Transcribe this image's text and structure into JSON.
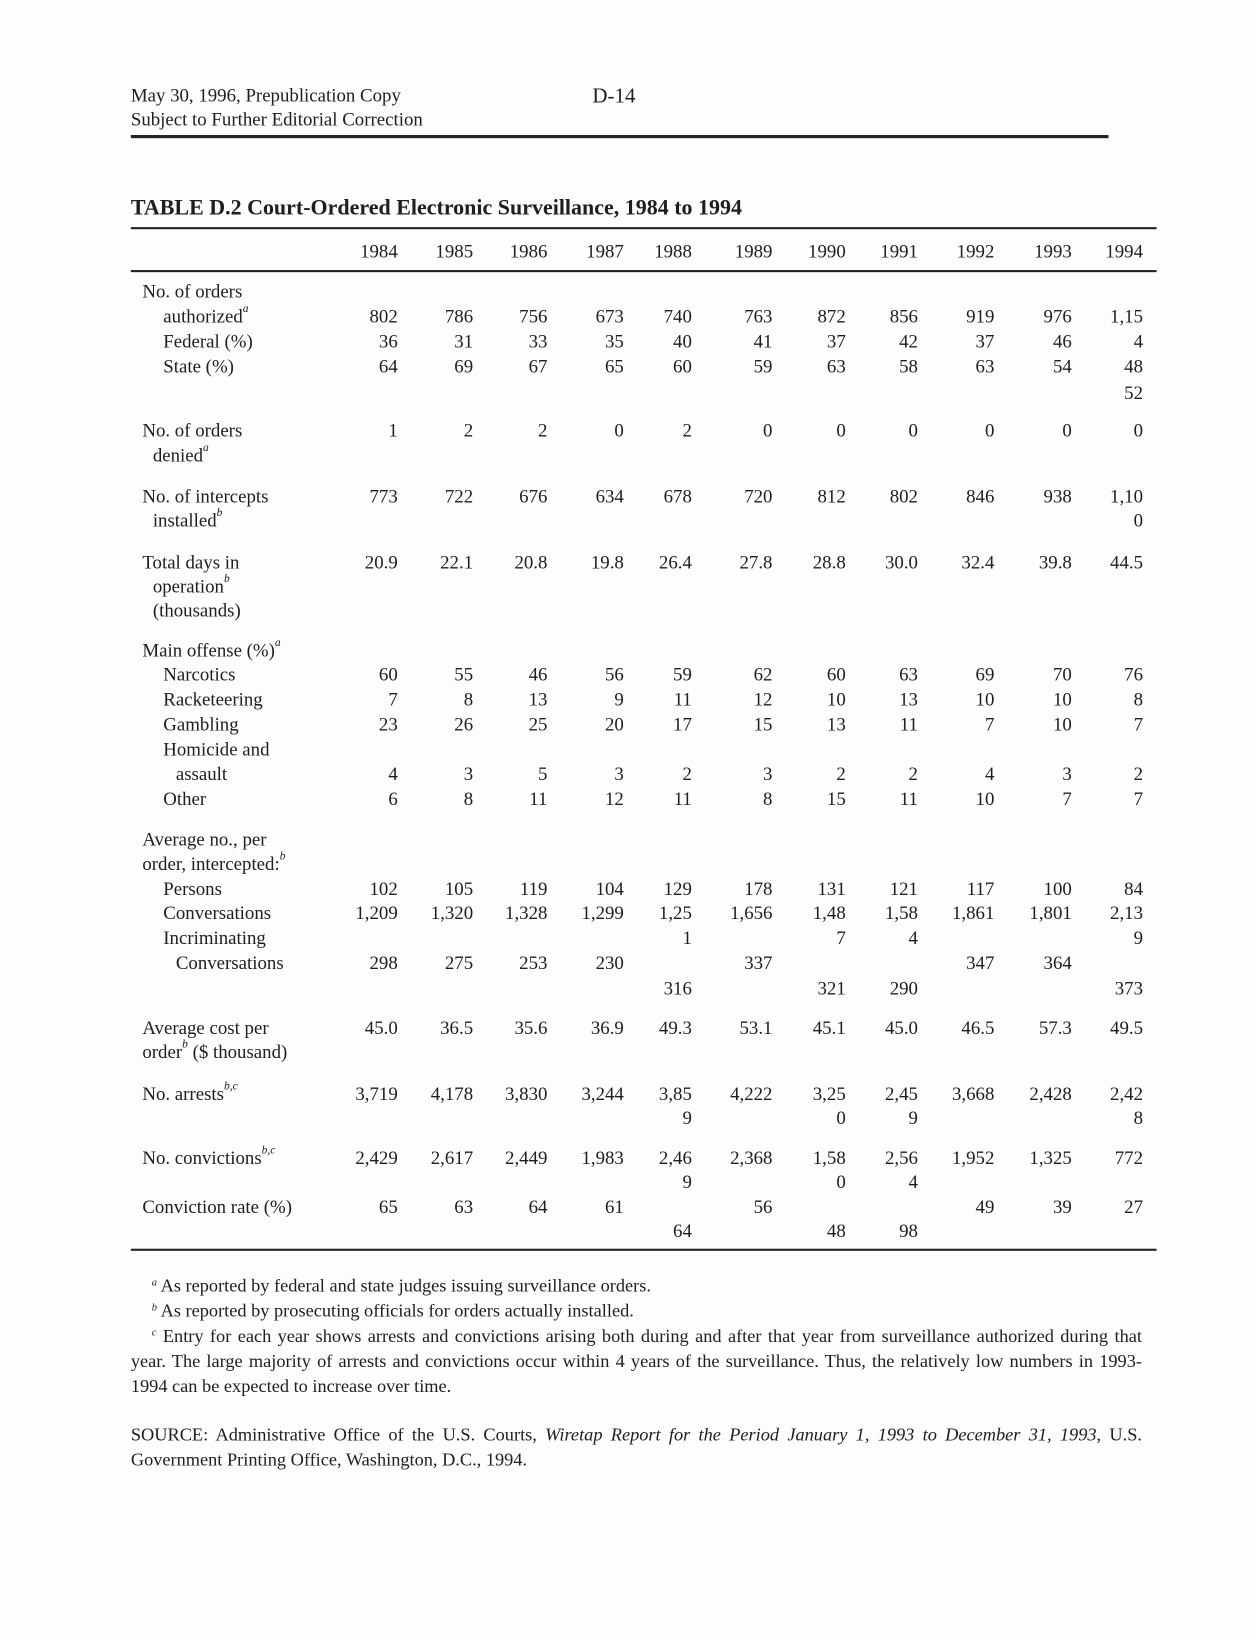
{
  "header": {
    "line1": "May 30, 1996, Prepublication Copy",
    "line2": "Subject to Further Editorial Correction",
    "page_number": "D-14"
  },
  "table": {
    "title": "TABLE D.2  Court-Ordered Electronic Surveillance, 1984 to 1994",
    "years": [
      "1984",
      "1985",
      "1986",
      "1987",
      "1988",
      "1989",
      "1990",
      "1991",
      "1992",
      "1993",
      "1994"
    ],
    "lines": [
      {
        "label": "No. of orders",
        "indent": 0,
        "sup": "",
        "cells": [
          "",
          "",
          "",
          "",
          "",
          "",
          "",
          "",
          "",
          "",
          ""
        ]
      },
      {
        "label": "authorized",
        "indent": 1,
        "sup": "a",
        "cells": [
          "802",
          "786",
          "756",
          "673",
          "740",
          "763",
          "872",
          "856",
          "919",
          "976",
          "1,15"
        ]
      },
      {
        "label": "Federal (%)",
        "indent": 1,
        "sup": "",
        "cells": [
          "36",
          "31",
          "33",
          "35",
          "40",
          "41",
          "37",
          "42",
          "37",
          "46",
          "4"
        ]
      },
      {
        "label": "State (%)",
        "indent": 1,
        "sup": "",
        "cells": [
          "64",
          "69",
          "67",
          "65",
          "60",
          "59",
          "63",
          "58",
          "63",
          "54",
          "48"
        ]
      },
      {
        "label": "",
        "indent": 0,
        "sup": "",
        "cells": [
          "",
          "",
          "",
          "",
          "",
          "",
          "",
          "",
          "",
          "",
          "52"
        ]
      },
      {
        "label": "No. of orders",
        "indent": 0,
        "sup": "",
        "cells": [
          "1",
          "2",
          "2",
          "0",
          "2",
          "0",
          "0",
          "0",
          "0",
          "0",
          "0"
        ]
      },
      {
        "label": "denied",
        "indent": 0.5,
        "sup": "a",
        "cells": [
          "",
          "",
          "",
          "",
          "",
          "",
          "",
          "",
          "",
          "",
          ""
        ]
      },
      {
        "label": "No. of intercepts",
        "indent": 0,
        "sup": "",
        "cells": [
          "773",
          "722",
          "676",
          "634",
          "678",
          "720",
          "812",
          "802",
          "846",
          "938",
          "1,10"
        ]
      },
      {
        "label": "installed",
        "indent": 0.5,
        "sup": "b",
        "cells": [
          "",
          "",
          "",
          "",
          "",
          "",
          "",
          "",
          "",
          "",
          "0"
        ]
      },
      {
        "label": "Total days in",
        "indent": 0,
        "sup": "",
        "cells": [
          "20.9",
          "22.1",
          "20.8",
          "19.8",
          "26.4",
          "27.8",
          "28.8",
          "30.0",
          "32.4",
          "39.8",
          "44.5"
        ]
      },
      {
        "label": "operation",
        "indent": 0.5,
        "sup": "b",
        "cells": [
          "",
          "",
          "",
          "",
          "",
          "",
          "",
          "",
          "",
          "",
          ""
        ]
      },
      {
        "label": "(thousands)",
        "indent": 0.5,
        "sup": "",
        "cells": [
          "",
          "",
          "",
          "",
          "",
          "",
          "",
          "",
          "",
          "",
          ""
        ]
      },
      {
        "label": "Main offense (%)",
        "indent": 0,
        "sup": "a",
        "cells": [
          "",
          "",
          "",
          "",
          "",
          "",
          "",
          "",
          "",
          "",
          ""
        ]
      },
      {
        "label": "Narcotics",
        "indent": 1,
        "sup": "",
        "cells": [
          "60",
          "55",
          "46",
          "56",
          "59",
          "62",
          "60",
          "63",
          "69",
          "70",
          "76"
        ]
      },
      {
        "label": "Racketeering",
        "indent": 1,
        "sup": "",
        "cells": [
          "7",
          "8",
          "13",
          "9",
          "11",
          "12",
          "10",
          "13",
          "10",
          "10",
          "8"
        ]
      },
      {
        "label": "Gambling",
        "indent": 1,
        "sup": "",
        "cells": [
          "23",
          "26",
          "25",
          "20",
          "17",
          "15",
          "13",
          "11",
          "7",
          "10",
          "7"
        ]
      },
      {
        "label": "Homicide and",
        "indent": 1,
        "sup": "",
        "cells": [
          "",
          "",
          "",
          "",
          "",
          "",
          "",
          "",
          "",
          "",
          ""
        ]
      },
      {
        "label": "assault",
        "indent": 1.6,
        "sup": "",
        "cells": [
          "4",
          "3",
          "5",
          "3",
          "2",
          "3",
          "2",
          "2",
          "4",
          "3",
          "2"
        ]
      },
      {
        "label": "Other",
        "indent": 1,
        "sup": "",
        "cells": [
          "6",
          "8",
          "11",
          "12",
          "11",
          "8",
          "15",
          "11",
          "10",
          "7",
          "7"
        ]
      },
      {
        "label": "Average no., per",
        "indent": 0,
        "sup": "",
        "cells": [
          "",
          "",
          "",
          "",
          "",
          "",
          "",
          "",
          "",
          "",
          ""
        ]
      },
      {
        "label": "order, intercepted:",
        "indent": 0,
        "sup": "b",
        "cells": [
          "",
          "",
          "",
          "",
          "",
          "",
          "",
          "",
          "",
          "",
          ""
        ]
      },
      {
        "label": "Persons",
        "indent": 1,
        "sup": "",
        "cells": [
          "102",
          "105",
          "119",
          "104",
          "129",
          "178",
          "131",
          "121",
          "117",
          "100",
          "84"
        ]
      },
      {
        "label": "Conversations",
        "indent": 1,
        "sup": "",
        "cells": [
          "1,209",
          "1,320",
          "1,328",
          "1,299",
          "1,25",
          "1,656",
          "1,48",
          "1,58",
          "1,861",
          "1,801",
          "2,13"
        ]
      },
      {
        "label": "Incriminating",
        "indent": 1,
        "sup": "",
        "cells": [
          "",
          "",
          "",
          "",
          "1",
          "",
          "7",
          "4",
          "",
          "",
          "9"
        ]
      },
      {
        "label": "Conversations",
        "indent": 1.6,
        "sup": "",
        "cells": [
          "298",
          "275",
          "253",
          "230",
          "",
          "337",
          "",
          "",
          "347",
          "364",
          ""
        ]
      },
      {
        "label": "",
        "indent": 0,
        "sup": "",
        "cells": [
          "",
          "",
          "",
          "",
          "316",
          "",
          "321",
          "290",
          "",
          "",
          "373"
        ]
      },
      {
        "label": "Average cost per",
        "indent": 0,
        "sup": "",
        "cells": [
          "45.0",
          "36.5",
          "35.6",
          "36.9",
          "49.3",
          "53.1",
          "45.1",
          "45.0",
          "46.5",
          "57.3",
          "49.5"
        ]
      },
      {
        "label": "order",
        "indent": 0,
        "sup": "b",
        "after": " ($ thousand)",
        "cells": [
          "",
          "",
          "",
          "",
          "",
          "",
          "",
          "",
          "",
          "",
          ""
        ]
      },
      {
        "label": "No. arrests",
        "indent": 0,
        "sup": "b,c",
        "cells": [
          "3,719",
          "4,178",
          "3,830",
          "3,244",
          "3,85",
          "4,222",
          "3,25",
          "2,45",
          "3,668",
          "2,428",
          "2,42"
        ]
      },
      {
        "label": "",
        "indent": 0,
        "sup": "",
        "cells": [
          "",
          "",
          "",
          "",
          "9",
          "",
          "0",
          "9",
          "",
          "",
          "8"
        ]
      },
      {
        "label": "No. convictions",
        "indent": 0,
        "sup": "b,c",
        "cells": [
          "2,429",
          "2,617",
          "2,449",
          "1,983",
          "2,46",
          "2,368",
          "1,58",
          "2,56",
          "1,952",
          "1,325",
          "772"
        ]
      },
      {
        "label": "",
        "indent": 0,
        "sup": "",
        "cells": [
          "",
          "",
          "",
          "",
          "9",
          "",
          "0",
          "4",
          "",
          "",
          ""
        ]
      },
      {
        "label": "Conviction rate (%)",
        "indent": 0,
        "sup": "",
        "cells": [
          "65",
          "63",
          "64",
          "61",
          "",
          "56",
          "",
          "",
          "49",
          "39",
          "27"
        ]
      },
      {
        "label": "",
        "indent": 0,
        "sup": "",
        "cells": [
          "",
          "",
          "",
          "",
          "64",
          "",
          "48",
          "98",
          "",
          "",
          ""
        ]
      }
    ]
  },
  "footnotes": [
    {
      "mark": "a",
      "text": "As reported by federal and state judges issuing surveillance orders."
    },
    {
      "mark": "b",
      "text": "As reported by prosecuting officials for orders actually installed."
    },
    {
      "mark": "c",
      "text": "Entry for each year shows arrests and convictions arising both during and after that year from surveillance authorized during that year.  The large majority of arrests and convictions occur within 4 years of the surveillance.  Thus, the relatively low numbers in 1993-1994 can be expected to increase over time."
    }
  ],
  "source": {
    "prefix": "SOURCE: Administrative Office of the U.S. Courts, ",
    "title": "Wiretap Report for the Period January 1, 1993 to December 31, 1993",
    "suffix": ", U.S. Government Printing Office, Washington, D.C., 1994."
  }
}
